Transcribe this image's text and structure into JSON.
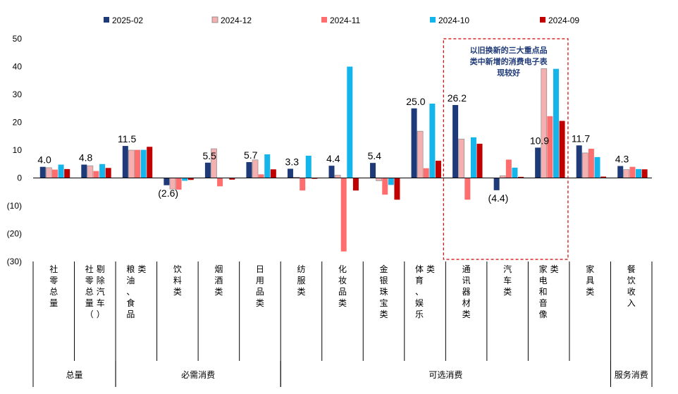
{
  "chart_data": {
    "type": "bar",
    "ylim": [
      -30,
      50
    ],
    "yticks": [
      {
        "value": 50,
        "label": "50"
      },
      {
        "value": 40,
        "label": "40"
      },
      {
        "value": 30,
        "label": "30"
      },
      {
        "value": 20,
        "label": "20"
      },
      {
        "value": 10,
        "label": "10"
      },
      {
        "value": 0,
        "label": "0"
      },
      {
        "value": -10,
        "label": "(10)"
      },
      {
        "value": -20,
        "label": "(20)"
      },
      {
        "value": -30,
        "label": "(30)"
      }
    ],
    "categories": [
      "社零总量",
      "社零总量（剔除汽车）",
      "粮油、食品类",
      "饮料类",
      "烟酒类",
      "日用品类",
      "纺服类",
      "化妆品类",
      "金银珠宝类",
      "体育、娱乐类",
      "通讯器材类",
      "汽车类",
      "家电和音像类",
      "家具类",
      "餐饮收入"
    ],
    "series": [
      {
        "name": "2025-02",
        "color": "#1f3a78",
        "values": [
          4.0,
          4.8,
          11.5,
          -2.6,
          5.5,
          5.7,
          3.3,
          4.4,
          5.4,
          25.0,
          26.2,
          -4.4,
          10.9,
          11.7,
          4.3
        ]
      },
      {
        "name": "2024-12",
        "color": "#f4b0b0",
        "values": [
          3.7,
          4.4,
          10.0,
          -4.0,
          10.5,
          6.5,
          0.3,
          1.0,
          -1.0,
          16.8,
          14.0,
          0.8,
          39.3,
          9.0,
          3.0
        ]
      },
      {
        "name": "2024-11",
        "color": "#ff6e6e",
        "values": [
          3.0,
          2.5,
          10.1,
          -4.2,
          -3.0,
          1.3,
          -4.5,
          -26.4,
          -6.0,
          3.5,
          -7.8,
          6.6,
          22.2,
          10.5,
          4.0
        ]
      },
      {
        "name": "2024-10",
        "color": "#13b5ea",
        "values": [
          4.8,
          5.0,
          10.1,
          -1.0,
          0.0,
          8.5,
          8.0,
          40.0,
          -2.5,
          26.7,
          14.6,
          3.7,
          39.2,
          7.5,
          3.2
        ]
      },
      {
        "name": "2024-09",
        "color": "#c00000",
        "values": [
          3.2,
          3.6,
          11.2,
          -0.7,
          -0.6,
          3.1,
          -0.3,
          -4.5,
          -7.8,
          6.2,
          12.3,
          0.4,
          20.5,
          0.5,
          3.1
        ]
      }
    ],
    "data_labels": [
      {
        "category_index": 0,
        "text": "4.0"
      },
      {
        "category_index": 1,
        "text": "4.8"
      },
      {
        "category_index": 2,
        "text": "11.5"
      },
      {
        "category_index": 3,
        "text": "(2.6)"
      },
      {
        "category_index": 4,
        "text": "5.5"
      },
      {
        "category_index": 5,
        "text": "5.7"
      },
      {
        "category_index": 6,
        "text": "3.3"
      },
      {
        "category_index": 7,
        "text": "4.4"
      },
      {
        "category_index": 8,
        "text": "5.4"
      },
      {
        "category_index": 9,
        "text": "25.0"
      },
      {
        "category_index": 10,
        "text": "26.2"
      },
      {
        "category_index": 11,
        "text": "(4.4)"
      },
      {
        "category_index": 12,
        "text": "10.9"
      },
      {
        "category_index": 13,
        "text": "11.7"
      },
      {
        "category_index": 14,
        "text": "4.3"
      }
    ],
    "groups": [
      {
        "label": "总量",
        "start": 0,
        "end": 1
      },
      {
        "label": "必需消费",
        "start": 2,
        "end": 5
      },
      {
        "label": "可选消费",
        "start": 6,
        "end": 13
      },
      {
        "label": "服务消费",
        "start": 14,
        "end": 14
      }
    ],
    "annotation": {
      "lines": [
        "以旧换新的三大重点品",
        "类中新增的消费电子表",
        "现较好"
      ],
      "categories": [
        10,
        12
      ]
    }
  }
}
